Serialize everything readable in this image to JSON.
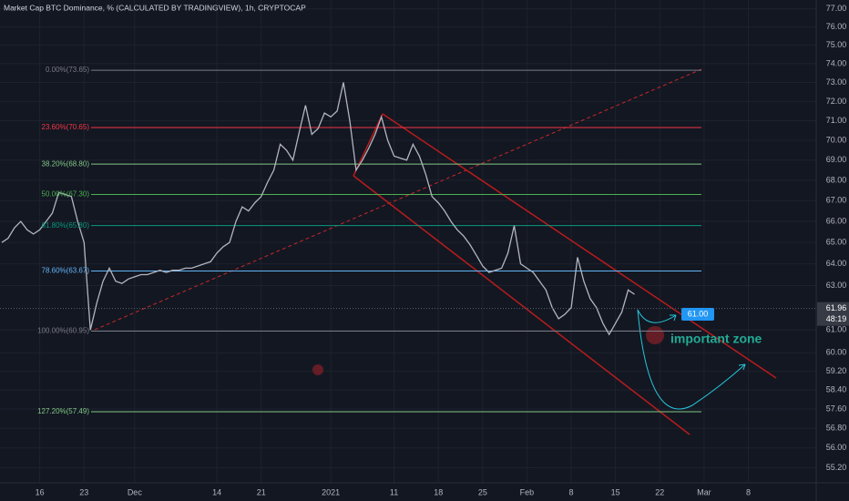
{
  "chart_data": {
    "type": "line",
    "title": "Market Cap BTC Dominance, % (CALCULATED BY TRADINGVIEW), 1h, CRYPTOCAP",
    "log_scale": true,
    "grid": true,
    "color": "#b2b5be",
    "categories": [
      null,
      null,
      null,
      null,
      null,
      null,
      "16",
      null,
      null,
      null,
      null,
      null,
      null,
      "23",
      null,
      null,
      null,
      null,
      null,
      null,
      null,
      "Dec",
      null,
      null,
      null,
      null,
      null,
      null,
      null,
      null,
      null,
      null,
      null,
      null,
      "14",
      null,
      null,
      null,
      null,
      null,
      null,
      "21",
      null,
      null,
      null,
      null,
      null,
      null,
      null,
      null,
      null,
      null,
      "2021",
      null,
      null,
      null,
      null,
      null,
      null,
      null,
      null,
      null,
      "11",
      null,
      null,
      null,
      null,
      null,
      null,
      "18",
      null,
      null,
      null,
      null,
      null,
      null,
      "25",
      null,
      null,
      null,
      null,
      null,
      null,
      "Feb",
      null,
      null,
      null,
      null,
      null,
      null,
      "8",
      null,
      null,
      null,
      null,
      null,
      null,
      "15",
      null,
      null,
      null,
      null,
      null,
      null,
      "22",
      null,
      null,
      null,
      null,
      null,
      null,
      "Mar",
      null,
      null,
      null,
      null,
      null,
      null,
      "8"
    ],
    "values": [
      65.0,
      65.2,
      65.7,
      66.0,
      65.6,
      65.4,
      65.6,
      66.0,
      66.4,
      67.4,
      67.3,
      67.2,
      66.0,
      65.0,
      61.0,
      62.2,
      63.2,
      63.8,
      63.2,
      63.1,
      63.3,
      63.4,
      63.5,
      63.5,
      63.6,
      63.7,
      63.6,
      63.7,
      63.7,
      63.8,
      63.8,
      63.9,
      64.0,
      64.1,
      64.5,
      64.8,
      65.0,
      66.0,
      66.7,
      66.5,
      66.9,
      67.2,
      67.9,
      68.5,
      69.8,
      69.5,
      69.0,
      70.4,
      71.8,
      70.3,
      70.6,
      71.4,
      71.2,
      71.5,
      73.0,
      71.0,
      68.5,
      69.0,
      69.6,
      70.3,
      71.2,
      70.0,
      69.2,
      69.1,
      69.0,
      69.8,
      69.2,
      68.3,
      67.2,
      66.9,
      66.5,
      66.0,
      65.6,
      65.3,
      64.9,
      64.4,
      63.9,
      63.6,
      63.7,
      63.8,
      64.5,
      65.8,
      64.0,
      63.8,
      63.6,
      63.2,
      62.8,
      62.0,
      61.5,
      61.7,
      62.0,
      64.3,
      63.2,
      62.4,
      62.0,
      61.3,
      60.8,
      61.3,
      61.8,
      62.8,
      62.6,
      null,
      null,
      null,
      null,
      null,
      null,
      null,
      null,
      null,
      null,
      null,
      null,
      null,
      null,
      null,
      null,
      null,
      null
    ],
    "ylim": [
      54.6,
      77.5
    ],
    "yticks": [
      {
        "value": 77,
        "label": "77.00"
      },
      {
        "value": 76,
        "label": "76.00"
      },
      {
        "value": 75,
        "label": "75.00"
      },
      {
        "value": 74,
        "label": "74.00"
      },
      {
        "value": 73,
        "label": "73.00"
      },
      {
        "value": 72,
        "label": "72.00"
      },
      {
        "value": 71,
        "label": "71.00"
      },
      {
        "value": 70,
        "label": "70.00"
      },
      {
        "value": 69,
        "label": "69.00"
      },
      {
        "value": 68,
        "label": "68.00"
      },
      {
        "value": 67,
        "label": "67.00"
      },
      {
        "value": 66,
        "label": "66.00"
      },
      {
        "value": 65,
        "label": "65.00"
      },
      {
        "value": 64,
        "label": "64.00"
      },
      {
        "value": 63,
        "label": "63.00"
      },
      {
        "value": 61,
        "label": "61.00"
      },
      {
        "value": 60,
        "label": "60.00"
      },
      {
        "value": 59.2,
        "label": "59.20"
      },
      {
        "value": 58.4,
        "label": "58.40"
      },
      {
        "value": 57.6,
        "label": "57.60"
      },
      {
        "value": 56.8,
        "label": "56.80"
      },
      {
        "value": 56,
        "label": "56.00"
      },
      {
        "value": 55.2,
        "label": "55.20"
      }
    ],
    "fib_levels": [
      {
        "label": "0.00%(73.65)",
        "value": 73.65,
        "color": "#787b86"
      },
      {
        "label": "23.60%(70.65)",
        "value": 70.65,
        "color": "#f23645"
      },
      {
        "label": "38.20%(68.80)",
        "value": 68.8,
        "color": "#81c784"
      },
      {
        "label": "50.00%(67.30)",
        "value": 67.3,
        "color": "#4caf50"
      },
      {
        "label": "61.80%(65.80)",
        "value": 65.8,
        "color": "#089981"
      },
      {
        "label": "78.60%(63.67)",
        "value": 63.67,
        "color": "#64b5f6"
      },
      {
        "label": "100.00%(60.95)",
        "value": 60.95,
        "color": "#787b86"
      },
      {
        "label": "127.20%(57.49)",
        "value": 57.49,
        "color": "#81c784"
      }
    ],
    "last_price": 61.96,
    "countdown": "48:19",
    "target_label": "61.00",
    "annotation": "important zone"
  }
}
